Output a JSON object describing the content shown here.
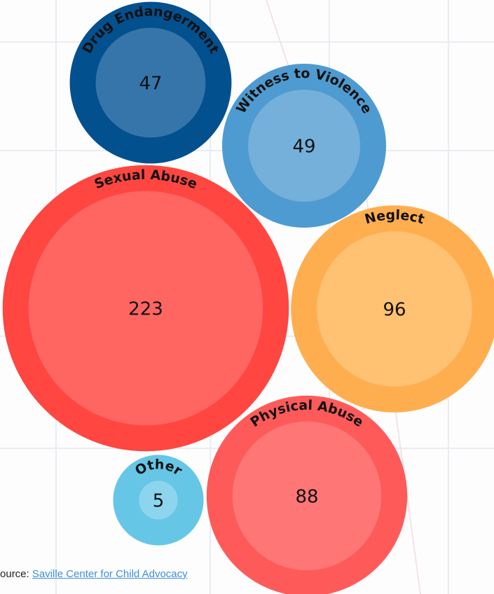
{
  "chart_data": {
    "type": "bubble",
    "categories": [
      "Drug Endangerment",
      "Witness to Violence",
      "Sexual Abuse",
      "Neglect",
      "Physical Abuse",
      "Other"
    ],
    "values": [
      47,
      49,
      223,
      96,
      88,
      5
    ],
    "colors": [
      "#03508f",
      "#4e9bd1",
      "#ff4640",
      "#ffae4f",
      "#ff5a5a",
      "#66c6e6"
    ],
    "inner_colors": [
      "#3675aa",
      "#74b0da",
      "#ff6561",
      "#ffc172",
      "#ff7676",
      "#8dd5ef"
    ],
    "source_label": "Source:",
    "source": "Saville Center for Child Advocacy"
  }
}
